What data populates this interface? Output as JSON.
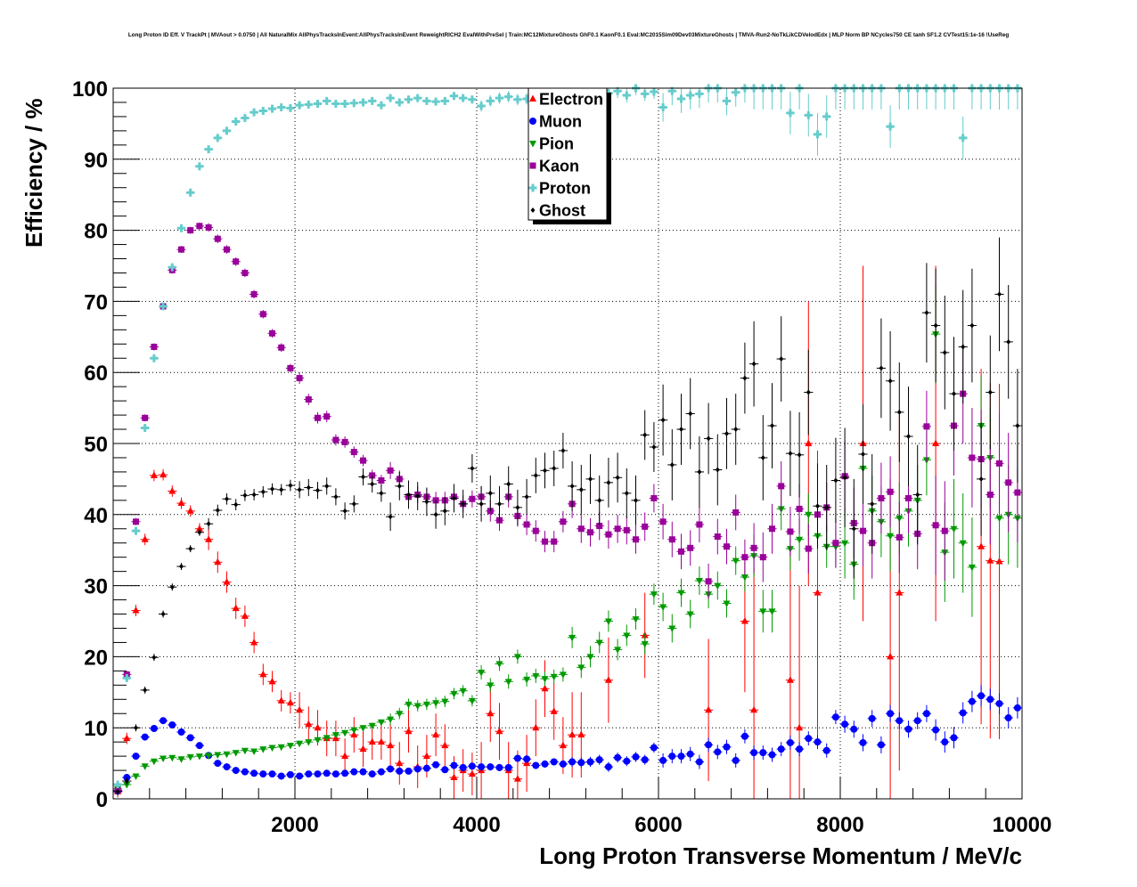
{
  "chart_data": {
    "type": "scatter",
    "title": "Long Proton ID Eff. V TrackPt | MVAout > 0.0750 | All NaturalMix AllPhysTracksInEvent:AllPhysTracksInEvent ReweightRICH2 EvalWithPreSel | Train:MC12MixtureGhosts GhF0.1 KaonF0.1 Eval:MC2015Sim09Dev03MixtureGhosts | TMVA-Run2-NoTkLikCDVelodEdx | MLP Norm BP NCycles750 CE tanh SF1.2 CVTest15:1e-16 !UseReg",
    "xlabel": "Long Proton Transverse Momentum / MeV/c",
    "ylabel": "Efficiency / %",
    "xlim": [
      0,
      10000
    ],
    "ylim": [
      0,
      100
    ],
    "xticks": [
      "2000",
      "4000",
      "6000",
      "8000",
      "10000"
    ],
    "xtick_values": [
      2000,
      4000,
      6000,
      8000,
      10000
    ],
    "yticks": [
      "0",
      "10",
      "20",
      "30",
      "40",
      "50",
      "60",
      "70",
      "80",
      "90",
      "100"
    ],
    "ytick_values": [
      0,
      10,
      20,
      30,
      40,
      50,
      60,
      70,
      80,
      90,
      100
    ],
    "grid": true,
    "legend_position": "top-center",
    "bin_width": 100,
    "x": "bin centers 50..9950 step 100",
    "series": [
      {
        "name": "Electron",
        "color": "#ff0000",
        "marker": "triangle-up",
        "err_per_1000": [
          0.8,
          1.5,
          2.5,
          3,
          4,
          6,
          10,
          20,
          25,
          25
        ],
        "values": [
          1,
          8.5,
          26.5,
          36.5,
          45.5,
          45.6,
          43.3,
          41.6,
          40.5,
          38,
          36.5,
          33.3,
          30.5,
          26.8,
          25.7,
          22,
          17.5,
          16.5,
          13.8,
          13.5,
          12.5,
          10.5,
          10,
          8.5,
          8.5,
          6,
          9,
          7,
          8,
          8,
          7.5,
          5,
          9.5,
          4.5,
          6,
          9,
          7.5,
          3,
          4,
          3.5,
          4,
          12,
          9.5,
          4,
          2.8,
          5,
          10,
          15.5,
          12.3,
          7.5,
          9,
          9,
          null,
          null,
          16.7,
          null,
          null,
          null,
          23,
          null,
          null,
          null,
          null,
          null,
          null,
          12.5,
          null,
          null,
          null,
          25,
          12.5,
          null,
          null,
          null,
          16.7,
          10,
          50,
          29,
          null,
          null,
          null,
          null,
          50,
          null,
          null,
          20,
          29,
          null,
          null,
          null,
          50,
          null,
          null,
          null,
          null,
          35.5,
          33.5,
          33.4,
          null,
          null
        ]
      },
      {
        "name": "Muon",
        "color": "#0000ff",
        "marker": "circle",
        "err_per_1000": [
          0.3,
          0.3,
          0.3,
          0.4,
          0.5,
          0.7,
          1,
          1,
          1.2,
          1.5
        ],
        "values": [
          1.1,
          3,
          6,
          8.7,
          9.9,
          11,
          10.4,
          9.4,
          8.6,
          7.5,
          6.1,
          5,
          4.5,
          4,
          3.8,
          3.6,
          3.5,
          3.5,
          3.2,
          3.4,
          3.2,
          3.5,
          3.5,
          3.6,
          3.5,
          3.6,
          3.8,
          3.8,
          3.5,
          3.8,
          4.2,
          3.9,
          3.9,
          4.2,
          4.3,
          4.8,
          4.1,
          4.7,
          4.4,
          4.6,
          4.5,
          4.5,
          4.4,
          4.4,
          5.7,
          5.6,
          4.7,
          4.9,
          5.2,
          4.9,
          5.2,
          5.1,
          5.2,
          5.5,
          4.5,
          5.8,
          5.3,
          5.9,
          5.5,
          7.2,
          5.4,
          6,
          6,
          6.3,
          5.2,
          7.6,
          6.6,
          7.3,
          5.4,
          8.8,
          6.5,
          6.5,
          6.2,
          7,
          7.9,
          7,
          8.5,
          8,
          6.8,
          11.5,
          10.5,
          9.8,
          7.9,
          11.3,
          7.6,
          12,
          11,
          9.8,
          11,
          12,
          9.7,
          8,
          8.6,
          12.1,
          13.7,
          14.5,
          14,
          13.4,
          11.4,
          12.8
        ]
      },
      {
        "name": "Pion",
        "color": "#009900",
        "marker": "triangle-down",
        "err_per_1000": [
          0.3,
          0.3,
          0.4,
          0.8,
          1,
          1.5,
          2,
          3,
          5,
          7
        ],
        "values": [
          1.4,
          2,
          3.2,
          4.6,
          5.3,
          5.7,
          5.8,
          5.6,
          5.9,
          6,
          6.1,
          6.2,
          6.3,
          6.5,
          6.8,
          6.7,
          7,
          7.2,
          7.3,
          7.5,
          7.8,
          8,
          8.3,
          8.6,
          9,
          9.3,
          9.7,
          10,
          10.3,
          10.8,
          11.2,
          12,
          13.3,
          13.1,
          13.3,
          13.5,
          13.7,
          14.8,
          15.2,
          13.8,
          17.8,
          16,
          19,
          16.5,
          20,
          16.8,
          17.3,
          16.9,
          17.2,
          17.5,
          22.7,
          18.5,
          20,
          22,
          25,
          21,
          23,
          25.3,
          21.8,
          28.8,
          27,
          24,
          29,
          26,
          30.7,
          28.8,
          30,
          27.5,
          33.5,
          31.2,
          34.2,
          26.4,
          26.4,
          40.8,
          35.2,
          36.5,
          40,
          37,
          35.5,
          35.5,
          36,
          33,
          46.5,
          40.5,
          39,
          37,
          39.5,
          40.5,
          42,
          47.7,
          65.4,
          34.7,
          38,
          36,
          32.6,
          52.5,
          48,
          39.5,
          40,
          39.5
        ]
      },
      {
        "name": "Kaon",
        "color": "#990099",
        "marker": "square",
        "err_per_1000": [
          0.5,
          0.6,
          0.8,
          1.2,
          1.5,
          2,
          2.5,
          3.5,
          5,
          7
        ],
        "values": [
          1.2,
          17.5,
          39,
          53.6,
          63.6,
          69.3,
          74.4,
          77.3,
          80,
          80.6,
          80.4,
          78.8,
          77.3,
          75.6,
          74,
          71,
          68.2,
          65.5,
          63.5,
          60.6,
          59.2,
          56.2,
          53.6,
          53.8,
          50.5,
          50.2,
          48.8,
          47.6,
          45.5,
          44.8,
          46.2,
          45,
          42.5,
          42.8,
          42.5,
          42,
          42,
          42.5,
          41.5,
          42.2,
          42.5,
          40.5,
          39.2,
          42.5,
          39.8,
          38.6,
          37.7,
          36.2,
          36.2,
          39,
          41.5,
          38,
          37.5,
          38.4,
          37.2,
          38,
          37.8,
          36.5,
          38.3,
          42.3,
          39,
          36.5,
          34.8,
          35.3,
          38.6,
          30.6,
          36.9,
          35.5,
          40.3,
          34,
          35.3,
          34,
          38,
          44,
          37.6,
          40.8,
          35.2,
          40,
          41,
          36,
          45.4,
          38.8,
          37.7,
          36,
          42.3,
          43.2,
          36.8,
          42.3,
          37.3,
          52.4,
          38.5,
          37.7,
          52.5,
          57,
          48,
          47.8,
          42.8,
          47.2,
          44.5,
          43.1
        ]
      },
      {
        "name": "Proton",
        "color": "#66cccc",
        "marker": "cross",
        "err_per_1000": [
          0.3,
          0.3,
          0.4,
          0.5,
          0.8,
          1,
          2,
          3,
          3,
          3
        ],
        "values": [
          2,
          17,
          37.7,
          52.2,
          62,
          69.3,
          74.8,
          80.3,
          85.3,
          89,
          91.4,
          93,
          94,
          95.3,
          95.8,
          96.6,
          96.8,
          97.1,
          97.3,
          97.2,
          97.6,
          97.7,
          97.8,
          98.2,
          97.8,
          97.8,
          97.9,
          98,
          98.2,
          97.6,
          98.6,
          98,
          98.4,
          98.6,
          98.2,
          98.1,
          98.2,
          98.9,
          98.6,
          98.4,
          97.5,
          98.2,
          98.6,
          98.8,
          98.4,
          98.5,
          99.2,
          98.5,
          99,
          99.3,
          99,
          98.5,
          99.1,
          99.4,
          99.3,
          99.6,
          99,
          100,
          99.2,
          99.5,
          97.3,
          99.6,
          98.5,
          99,
          99.2,
          100,
          100,
          98.2,
          99.4,
          100,
          100,
          100,
          100,
          100,
          96.5,
          100,
          96.2,
          93.5,
          96,
          100,
          100,
          100,
          100,
          100,
          100,
          94.6,
          100,
          100,
          100,
          100,
          100,
          100,
          100,
          93,
          100,
          100,
          100,
          100,
          100,
          100
        ]
      },
      {
        "name": "Ghost",
        "color": "#000000",
        "marker": "diamond",
        "err_per_1000": [
          0.5,
          0.8,
          1.2,
          2,
          2.5,
          3.5,
          5,
          6,
          7,
          8
        ],
        "values": [
          1,
          2.5,
          10,
          15.3,
          19.9,
          26,
          29.8,
          32.7,
          35.2,
          37.5,
          38.7,
          40.6,
          42.2,
          41.4,
          42.7,
          42.8,
          43.2,
          43.6,
          43.5,
          44.1,
          43.5,
          43.8,
          43.4,
          44,
          42.5,
          40.5,
          41.5,
          45.3,
          44.3,
          43,
          39.7,
          44,
          42.8,
          42.6,
          41.8,
          40,
          40.5,
          42.3,
          41.5,
          46.5,
          41.5,
          43,
          41.5,
          44.3,
          41,
          42.5,
          45.5,
          46.2,
          46.5,
          49,
          44,
          43.5,
          45,
          42,
          44.5,
          45.2,
          43,
          42,
          51.2,
          49.5,
          53.3,
          47,
          52,
          54.2,
          46,
          50.7,
          46.3,
          51.4,
          52,
          59.2,
          61.2,
          48,
          52.5,
          61.9,
          48.6,
          48.4,
          57.2,
          41.2,
          41,
          44.8,
          45.2,
          38,
          48.5,
          41.5,
          60.6,
          58.8,
          54.4,
          51,
          42.8,
          68.4,
          66.6,
          62.8,
          57,
          63.6,
          66.6,
          45,
          57.2,
          71,
          64.3,
          52.5
        ]
      }
    ]
  }
}
